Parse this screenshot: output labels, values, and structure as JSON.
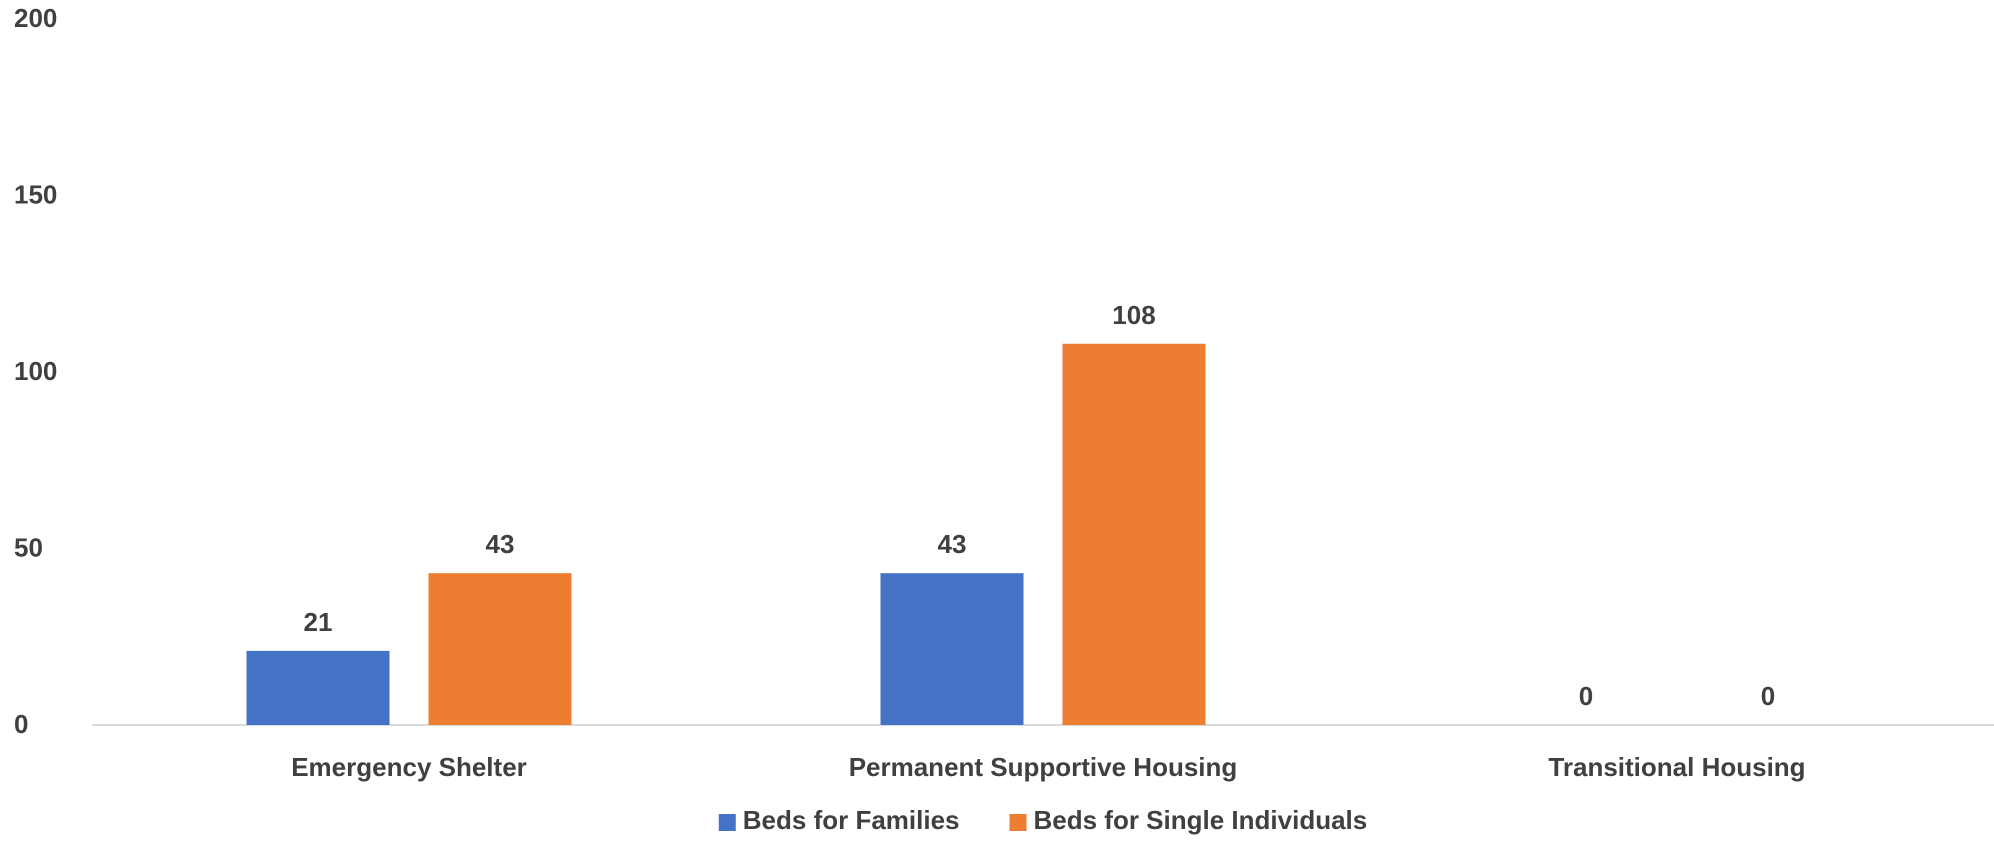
{
  "chart_data": {
    "type": "bar",
    "categories": [
      "Emergency Shelter",
      "Permanent Supportive Housing",
      "Transitional Housing"
    ],
    "series": [
      {
        "name": "Beds for Families",
        "values": [
          21,
          43,
          0
        ],
        "color": "#4472C4"
      },
      {
        "name": "Beds for Single Individuals",
        "values": [
          43,
          108,
          0
        ],
        "color": "#ED7D31"
      }
    ],
    "ylim": [
      0,
      200
    ],
    "yticks": [
      "0",
      "50",
      "100",
      "150",
      "200"
    ],
    "data_labels": true,
    "grid": false,
    "legend_position": "bottom"
  }
}
